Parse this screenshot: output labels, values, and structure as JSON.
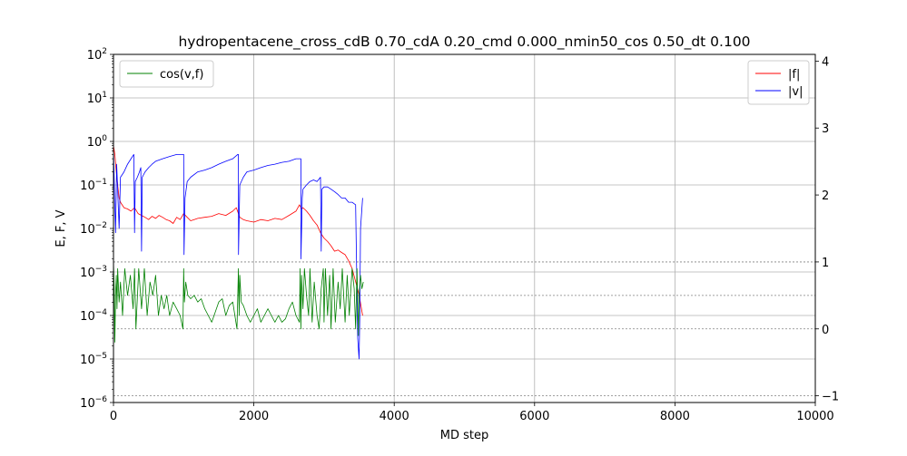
{
  "chart_data": {
    "type": "line",
    "title": "hydropentacene_cross_cdB 0.70_cdA 0.20_cmd 0.000_nmin50_cos 0.50_dt 0.100",
    "xlabel": "MD step",
    "ylabel": "E, F, V",
    "xlim": [
      0,
      10000
    ],
    "ylim_left": [
      1e-06,
      100
    ],
    "ylim_right": [
      -1.1,
      4.1
    ],
    "yscale_left": "log",
    "grid": true,
    "x_ticks": [
      {
        "value": 0,
        "label": "0"
      },
      {
        "value": 2000,
        "label": "2000"
      },
      {
        "value": 4000,
        "label": "4000"
      },
      {
        "value": 6000,
        "label": "6000"
      },
      {
        "value": 8000,
        "label": "8000"
      },
      {
        "value": 10000,
        "label": "10000"
      }
    ],
    "y_left_ticks": [
      {
        "exp": -6,
        "base": "10",
        "sup": "−6"
      },
      {
        "exp": -5,
        "base": "10",
        "sup": "−5"
      },
      {
        "exp": -4,
        "base": "10",
        "sup": "−4"
      },
      {
        "exp": -3,
        "base": "10",
        "sup": "−3"
      },
      {
        "exp": -2,
        "base": "10",
        "sup": "−2"
      },
      {
        "exp": -1,
        "base": "10",
        "sup": "−1"
      },
      {
        "exp": 0,
        "base": "10",
        "sup": "0"
      },
      {
        "exp": 1,
        "base": "10",
        "sup": "1"
      },
      {
        "exp": 2,
        "base": "10",
        "sup": "2"
      }
    ],
    "y_right_ticks": [
      {
        "value": -1,
        "label": "−1"
      },
      {
        "value": 0,
        "label": "0"
      },
      {
        "value": 1,
        "label": "1"
      },
      {
        "value": 2,
        "label": "2"
      },
      {
        "value": 3,
        "label": "3"
      },
      {
        "value": 4,
        "label": "4"
      }
    ],
    "reference_lines_right": [
      -1,
      0,
      0.5,
      1
    ],
    "legend_left": {
      "placement": "upper-left",
      "entries": [
        {
          "label": "cos(v,f)",
          "color": "#008000"
        }
      ]
    },
    "legend_right": {
      "placement": "upper-right",
      "entries": [
        {
          "label": "|f|",
          "color": "#ff0000"
        },
        {
          "label": "|v|",
          "color": "#0000ff"
        }
      ]
    },
    "series": [
      {
        "key": "f",
        "color": "#ff0000",
        "axis": "left",
        "x": [
          0,
          20,
          40,
          60,
          80,
          100,
          150,
          200,
          250,
          300,
          350,
          400,
          450,
          500,
          550,
          600,
          650,
          700,
          750,
          800,
          850,
          900,
          950,
          1000,
          1050,
          1100,
          1150,
          1200,
          1300,
          1400,
          1500,
          1600,
          1700,
          1750,
          1780,
          1800,
          1850,
          1900,
          2000,
          2100,
          2200,
          2300,
          2400,
          2500,
          2600,
          2650,
          2680,
          2700,
          2750,
          2800,
          2850,
          2900,
          2950,
          3000,
          3050,
          3100,
          3150,
          3200,
          3250,
          3300,
          3350,
          3400,
          3450,
          3500,
          3550
        ],
        "y": [
          0.8,
          0.5,
          0.2,
          0.1,
          0.05,
          0.04,
          0.03,
          0.028,
          0.025,
          0.03,
          0.022,
          0.02,
          0.018,
          0.016,
          0.019,
          0.017,
          0.02,
          0.018,
          0.016,
          0.015,
          0.013,
          0.018,
          0.016,
          0.022,
          0.018,
          0.015,
          0.016,
          0.017,
          0.018,
          0.019,
          0.022,
          0.02,
          0.025,
          0.03,
          0.022,
          0.018,
          0.016,
          0.015,
          0.014,
          0.016,
          0.015,
          0.017,
          0.016,
          0.02,
          0.025,
          0.035,
          0.028,
          0.03,
          0.025,
          0.02,
          0.015,
          0.012,
          0.008,
          0.006,
          0.005,
          0.004,
          0.003,
          0.0032,
          0.0028,
          0.0025,
          0.0018,
          0.0012,
          0.0006,
          0.0003,
          0.0001
        ]
      },
      {
        "key": "v",
        "color": "#0000ff",
        "axis": "left",
        "x": [
          0,
          15,
          30,
          45,
          60,
          80,
          100,
          150,
          200,
          250,
          290,
          300,
          310,
          340,
          370,
          390,
          400,
          410,
          450,
          500,
          550,
          600,
          700,
          800,
          900,
          980,
          1000,
          1005,
          1020,
          1050,
          1100,
          1200,
          1300,
          1400,
          1500,
          1600,
          1700,
          1770,
          1780,
          1782,
          1800,
          1850,
          1900,
          2000,
          2100,
          2200,
          2300,
          2400,
          2500,
          2600,
          2660,
          2670,
          2672,
          2690,
          2700,
          2750,
          2800,
          2850,
          2900,
          2950,
          2960,
          2970,
          3000,
          3050,
          3100,
          3150,
          3200,
          3250,
          3300,
          3350,
          3400,
          3450,
          3480,
          3500,
          3510,
          3520,
          3550
        ],
        "y": [
          0.7,
          0.05,
          0.008,
          0.3,
          0.08,
          0.01,
          0.15,
          0.2,
          0.3,
          0.4,
          0.5,
          0.008,
          0.12,
          0.15,
          0.2,
          0.25,
          0.003,
          0.15,
          0.2,
          0.25,
          0.3,
          0.35,
          0.4,
          0.45,
          0.5,
          0.5,
          0.5,
          0.0025,
          0.05,
          0.12,
          0.15,
          0.2,
          0.22,
          0.25,
          0.3,
          0.35,
          0.4,
          0.5,
          0.5,
          0.0025,
          0.1,
          0.15,
          0.2,
          0.22,
          0.25,
          0.28,
          0.3,
          0.33,
          0.35,
          0.4,
          0.4,
          0.4,
          0.002,
          0.05,
          0.08,
          0.1,
          0.12,
          0.13,
          0.12,
          0.15,
          0.003,
          0.08,
          0.09,
          0.09,
          0.08,
          0.07,
          0.06,
          0.05,
          0.05,
          0.04,
          0.04,
          0.035,
          3e-05,
          1e-05,
          0.0001,
          0.01,
          0.05
        ]
      },
      {
        "key": "cos",
        "color": "#008000",
        "axis": "right",
        "x": [
          0,
          10,
          20,
          30,
          40,
          50,
          60,
          80,
          100,
          130,
          160,
          200,
          240,
          280,
          300,
          320,
          360,
          400,
          440,
          480,
          520,
          560,
          600,
          640,
          680,
          720,
          760,
          800,
          850,
          900,
          950,
          990,
          1000,
          1010,
          1030,
          1060,
          1100,
          1150,
          1200,
          1250,
          1300,
          1350,
          1400,
          1450,
          1500,
          1550,
          1600,
          1650,
          1700,
          1760,
          1780,
          1790,
          1800,
          1820,
          1850,
          1900,
          1950,
          2000,
          2050,
          2100,
          2150,
          2200,
          2250,
          2300,
          2350,
          2400,
          2450,
          2500,
          2550,
          2600,
          2650,
          2660,
          2670,
          2680,
          2700,
          2720,
          2750,
          2780,
          2800,
          2830,
          2860,
          2900,
          2930,
          2960,
          2990,
          3000,
          3020,
          3050,
          3080,
          3100,
          3130,
          3160,
          3200,
          3230,
          3260,
          3300,
          3330,
          3360,
          3400,
          3430,
          3450,
          3470,
          3490,
          3500,
          3520,
          3540,
          3560
        ],
        "y": [
          1.0,
          0.6,
          -0.2,
          0.5,
          0.8,
          0.3,
          0.9,
          0.4,
          0.7,
          0.2,
          0.9,
          0.5,
          0.8,
          0.3,
          0.9,
          0.0,
          0.9,
          0.3,
          0.9,
          0.2,
          0.7,
          0.5,
          0.8,
          0.2,
          0.5,
          0.3,
          0.5,
          0.2,
          0.4,
          0.3,
          0.2,
          0.0,
          0.9,
          0.4,
          0.7,
          0.5,
          0.45,
          0.5,
          0.4,
          0.45,
          0.3,
          0.2,
          0.1,
          0.25,
          0.4,
          0.45,
          0.2,
          0.35,
          0.4,
          0.0,
          0.9,
          0.2,
          0.8,
          0.4,
          0.35,
          0.2,
          0.1,
          0.2,
          0.3,
          0.1,
          0.2,
          0.3,
          0.2,
          0.1,
          0.2,
          0.1,
          0.15,
          0.3,
          0.4,
          0.2,
          0.1,
          0.9,
          0.0,
          0.8,
          0.3,
          0.9,
          0.5,
          0.2,
          0.9,
          0.1,
          0.7,
          0.2,
          0.0,
          0.6,
          0.9,
          0.1,
          0.9,
          0.2,
          0.8,
          0.0,
          0.9,
          0.1,
          0.7,
          0.3,
          0.9,
          0.1,
          0.8,
          0.2,
          0.9,
          0.6,
          0.0,
          0.9,
          -0.1,
          0.5,
          0.8,
          0.6,
          0.7
        ]
      }
    ]
  }
}
